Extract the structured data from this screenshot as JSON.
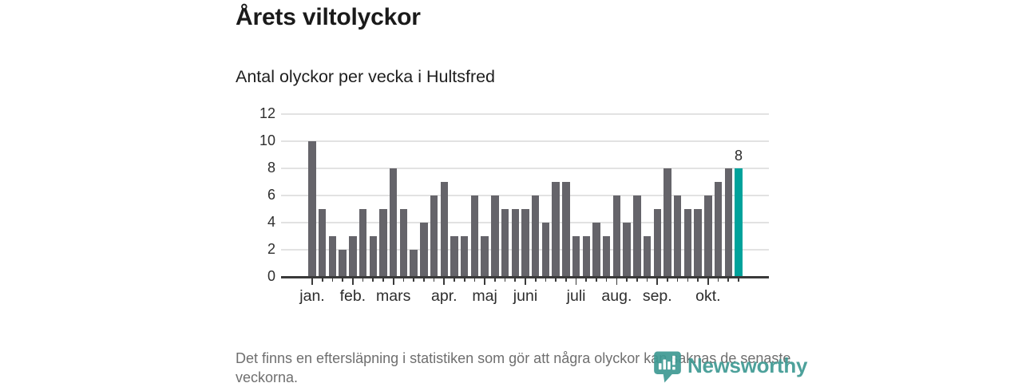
{
  "header": {
    "title": "Årets viltolyckor",
    "subtitle": "Antal olyckor per vecka i Hultsfred"
  },
  "chart_data": {
    "type": "bar",
    "title": "Årets viltolyckor",
    "subtitle": "Antal olyckor per vecka i Hultsfred",
    "ylabel": "",
    "xlabel": "",
    "ylim": [
      0,
      12
    ],
    "yticks": [
      0,
      2,
      4,
      6,
      8,
      10,
      12
    ],
    "grid": true,
    "legend": "none",
    "categories_unit": "vecka",
    "values": [
      10,
      5,
      3,
      2,
      3,
      5,
      3,
      5,
      8,
      5,
      2,
      4,
      6,
      7,
      3,
      3,
      6,
      3,
      6,
      5,
      5,
      5,
      6,
      4,
      7,
      7,
      3,
      3,
      4,
      3,
      6,
      4,
      6,
      3,
      5,
      8,
      6,
      5,
      5,
      6,
      7,
      8,
      8
    ],
    "month_ticks": [
      {
        "label": "jan.",
        "week": 1
      },
      {
        "label": "feb.",
        "week": 5
      },
      {
        "label": "mars",
        "week": 9
      },
      {
        "label": "apr.",
        "week": 14
      },
      {
        "label": "maj",
        "week": 18
      },
      {
        "label": "juni",
        "week": 22
      },
      {
        "label": "juli",
        "week": 27
      },
      {
        "label": "aug.",
        "week": 31
      },
      {
        "label": "sep.",
        "week": 35
      },
      {
        "label": "okt.",
        "week": 40
      }
    ],
    "last_value_label": "8",
    "bar_color": "#65646a",
    "highlight_color": "#00a29b",
    "highlight_last_bar": true
  },
  "footer": {
    "note": "Det finns en eftersläpning i statistiken som gör att några olyckor kan saknas de senaste veckorna."
  },
  "logo": {
    "wordmark": "Newsworthy",
    "icon": "newsworthy-barchart-bubble-icon",
    "color": "#3e9a93"
  }
}
